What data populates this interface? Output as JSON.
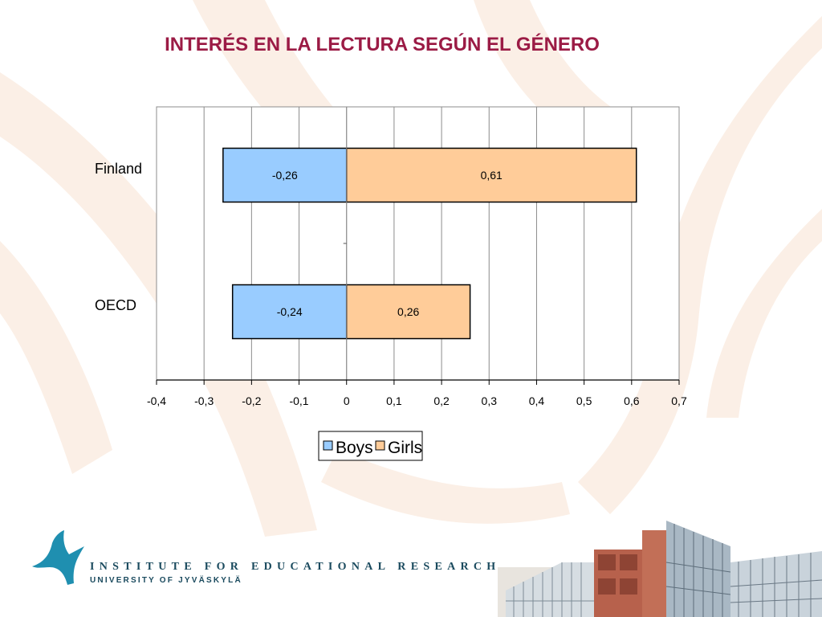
{
  "slide": {
    "title": "INTERÉS EN LA LECTURA SEGÚN EL GÉNERO"
  },
  "colors": {
    "title": "#9b1b45",
    "boys": "#99ccff",
    "girls": "#ffcc99",
    "background_swirl": "#fbefe6",
    "logo": "#1f8fb0",
    "footer_text": "#1a4a5e"
  },
  "chart_data": {
    "type": "bar",
    "orientation": "horizontal",
    "stacked": "diverging",
    "categories": [
      "Finland",
      "OECD"
    ],
    "series": [
      {
        "name": "Boys",
        "values": [
          -0.26,
          -0.24
        ],
        "labels": [
          "-0,26",
          "-0,24"
        ]
      },
      {
        "name": "Girls",
        "values": [
          0.61,
          0.26
        ],
        "labels": [
          "0,61",
          "0,26"
        ]
      }
    ],
    "xlim": [
      -0.4,
      0.7
    ],
    "xticks": [
      -0.4,
      -0.3,
      -0.2,
      -0.1,
      0,
      0.1,
      0.2,
      0.3,
      0.4,
      0.5,
      0.6,
      0.7
    ],
    "xtick_labels": [
      "-0,4",
      "-0,3",
      "-0,2",
      "-0,1",
      "0",
      "0,1",
      "0,2",
      "0,3",
      "0,4",
      "0,5",
      "0,6",
      "0,7"
    ],
    "grid": true,
    "legend": "bottom"
  },
  "footer": {
    "institute": "INSTITUTE FOR EDUCATIONAL RESEARCH",
    "university": "UNIVERSITY OF JYVÄSKYLÄ",
    "logo_icon": "jyu-bird-logo-icon",
    "photo": "university-building-photo"
  }
}
